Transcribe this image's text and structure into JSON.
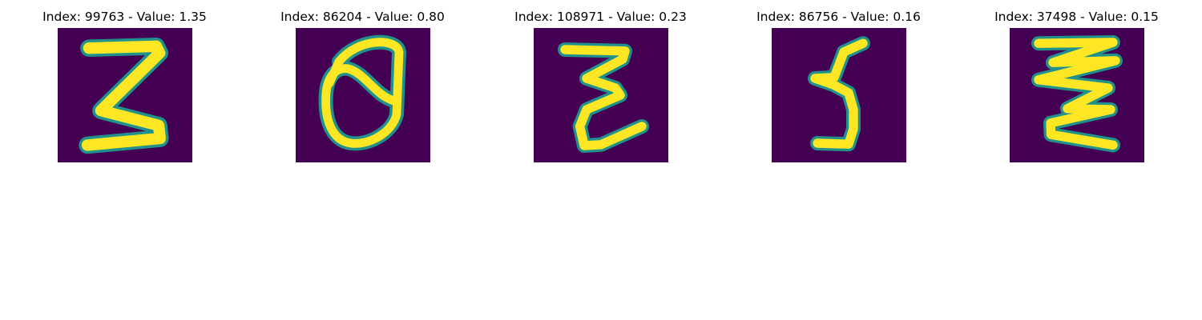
{
  "colors": {
    "background": "#ffffff",
    "image_background": "#440154",
    "image_stroke": "#fde725",
    "image_edge": "#21918c"
  },
  "panels": [
    {
      "title": "Index: 99763 - Value: 1.35",
      "digit_shape": "handwritten-3"
    },
    {
      "title": "Index: 86204 - Value: 0.80",
      "digit_shape": "handwritten-0"
    },
    {
      "title": "Index: 108971 - Value: 0.23",
      "digit_shape": "handwritten-3"
    },
    {
      "title": "Index: 86756 - Value: 0.16",
      "digit_shape": "handwritten-5"
    },
    {
      "title": "Index: 37498 - Value: 0.15",
      "digit_shape": "handwritten-3"
    }
  ]
}
